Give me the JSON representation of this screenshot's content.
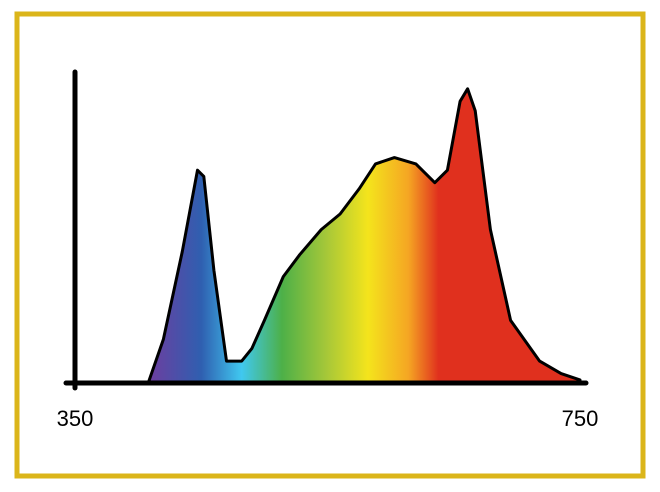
{
  "chart_data": {
    "type": "area",
    "x": [
      408,
      420,
      435,
      447,
      452,
      460,
      470,
      482,
      490,
      500,
      515,
      528,
      545,
      560,
      575,
      588,
      603,
      620,
      635,
      645,
      655,
      661,
      667,
      679,
      695,
      718,
      735,
      750
    ],
    "values": [
      0,
      14,
      42,
      68,
      66,
      36,
      7,
      7,
      11,
      20,
      34,
      41,
      49,
      54,
      62,
      70,
      72,
      70,
      64,
      68,
      90,
      94,
      87,
      49,
      20,
      7,
      3,
      1
    ],
    "xlim": [
      350,
      750
    ],
    "xticks": [
      350,
      750
    ],
    "ylim": [
      0,
      100
    ]
  }
}
